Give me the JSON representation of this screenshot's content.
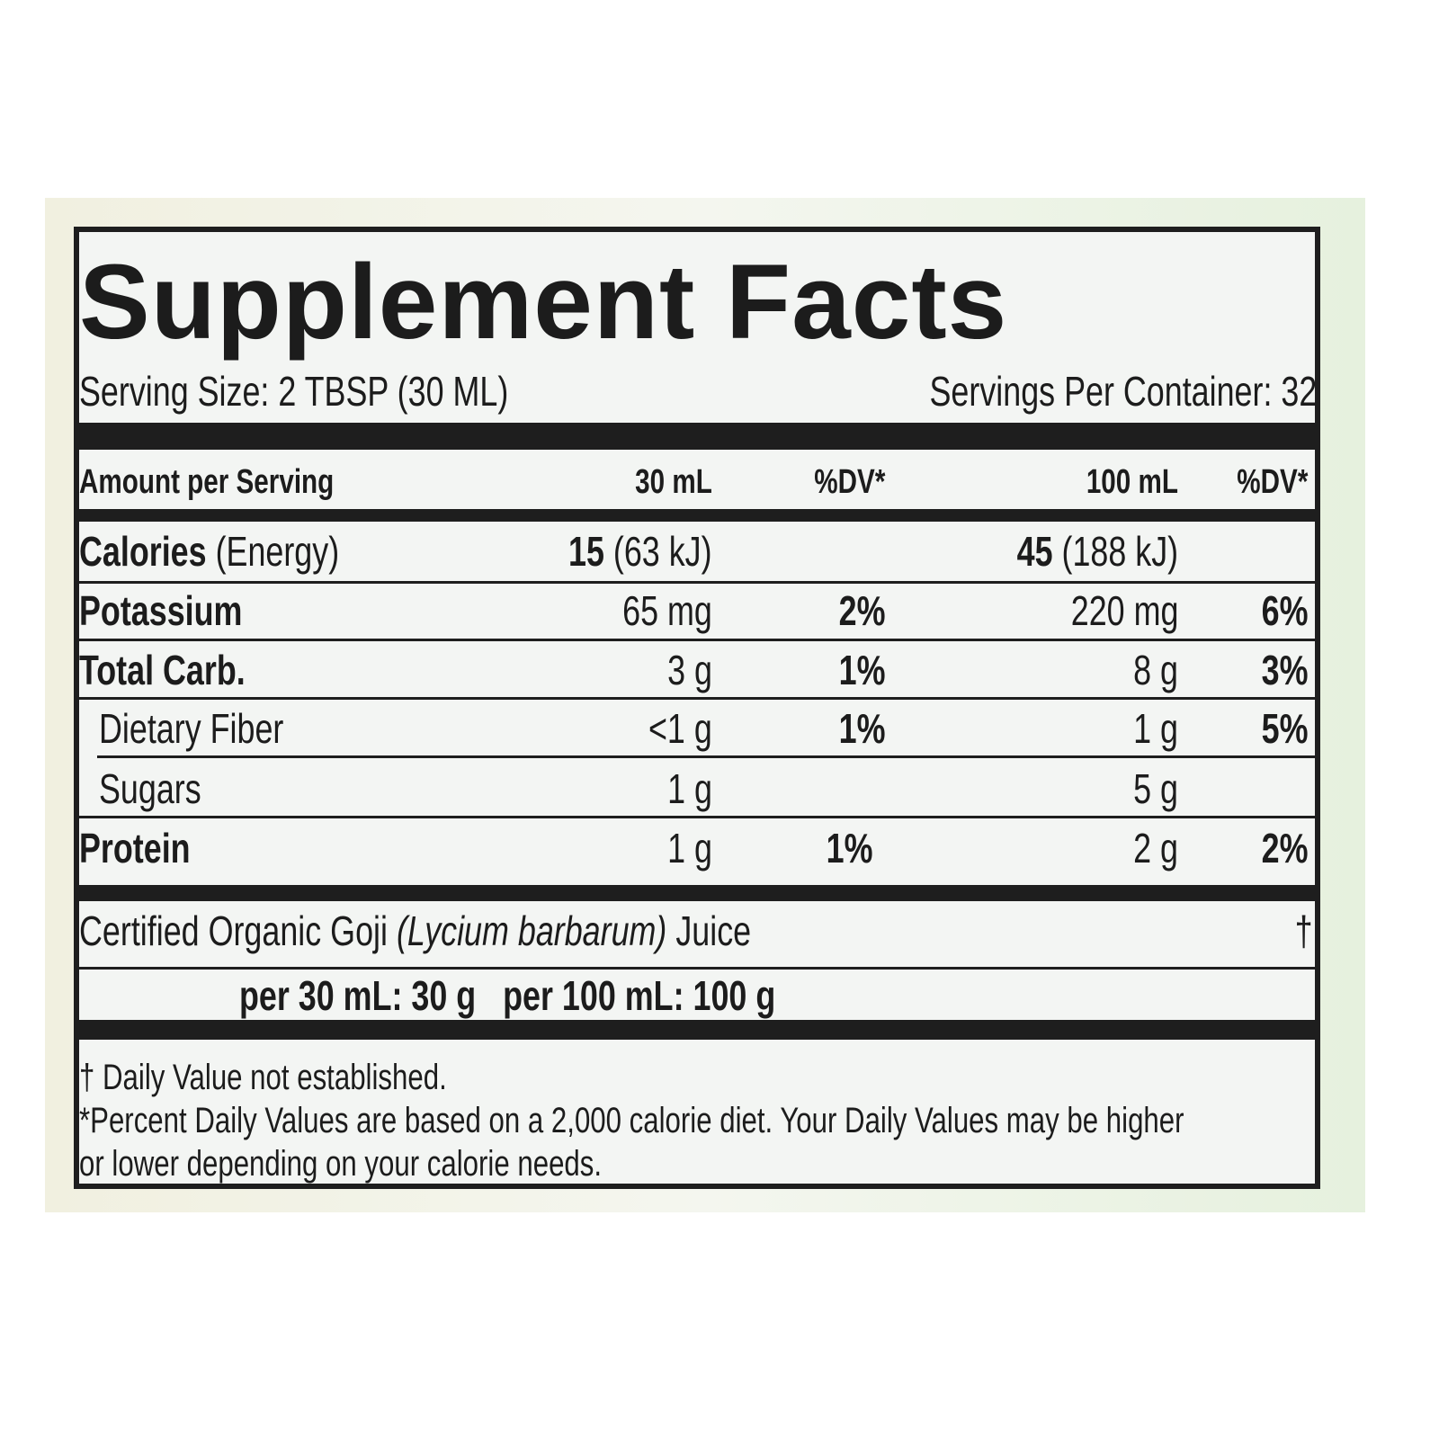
{
  "title": "Supplement Facts",
  "serving_size": "Serving Size: 2 TBSP (30 ML)",
  "servings_per_container": "Servings Per Container: 32",
  "header": {
    "amount": "Amount per Serving",
    "col1": "30 mL",
    "dv1": "%DV*",
    "col2": "100 mL",
    "dv2": "%DV*"
  },
  "rows": [
    {
      "name": "Calories",
      "name_extra": "(Energy)",
      "v1_bold": "15",
      "v1": "(63 kJ)",
      "dv1": "",
      "v2_bold": "45",
      "v2": "(188 kJ)",
      "dv2": ""
    },
    {
      "name": "Potassium",
      "v1": "65 mg",
      "dv1": "2%",
      "v2": "220 mg",
      "dv2": "6%"
    },
    {
      "name": "Total Carb.",
      "v1": "3 g",
      "dv1": "1%",
      "v2": "8 g",
      "dv2": "3%"
    },
    {
      "name": "Dietary Fiber",
      "v1": "<1 g",
      "dv1": "1%",
      "v2": "1 g",
      "dv2": "5%"
    },
    {
      "name": "Sugars",
      "v1": "1 g",
      "dv1": "",
      "v2": "5 g",
      "dv2": ""
    },
    {
      "name": "Protein",
      "v1": "1 g",
      "dv1": "1%",
      "v2": "2 g",
      "dv2": "2%"
    }
  ],
  "ingredient": {
    "name_pre": "Certified Organic Goji",
    "latin": "(Lycium barbarum)",
    "name_post": "Juice",
    "dv": "†",
    "amounts": "per 30 mL: 30 g   per 100 mL: 100 g"
  },
  "footnotes": [
    "† Daily Value not established.",
    "*Percent Daily Values are based on a 2,000 calorie diet. Your Daily Values may be higher",
    "or lower depending on your calorie needs."
  ]
}
